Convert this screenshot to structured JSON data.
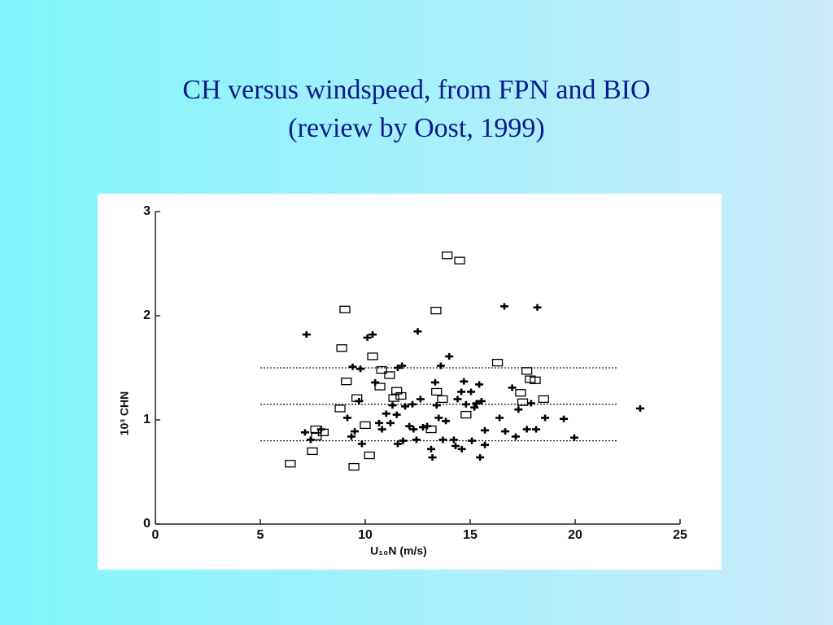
{
  "chart_data": {
    "type": "scatter",
    "title": "CH versus windspeed, from FPN and BIO",
    "subtitle": "(review by Oost, 1999)",
    "xlabel": "U₁₀N (m/s)",
    "ylabel": "10³ CHN",
    "xlim": [
      0,
      25
    ],
    "ylim": [
      0,
      3
    ],
    "xticks": [
      0,
      5,
      10,
      15,
      20,
      25
    ],
    "yticks": [
      0,
      1,
      2,
      3
    ],
    "reference_lines": [
      {
        "value": 0.8,
        "x": [
          5,
          22
        ]
      },
      {
        "value": 1.15,
        "x": [
          5,
          22
        ]
      },
      {
        "value": 1.5,
        "x": [
          5,
          22
        ]
      }
    ],
    "series": [
      {
        "marker": "square",
        "color": "#000000",
        "x": [
          6.43,
          7.48,
          7.64,
          7.67,
          8.0,
          8.8,
          8.88,
          9.03,
          9.1,
          9.46,
          9.6,
          10.0,
          10.2,
          10.35,
          10.7,
          10.78,
          11.16,
          11.36,
          11.5,
          11.7,
          13.14,
          13.37,
          13.4,
          13.68,
          13.9,
          14.5,
          14.8,
          16.3,
          17.4,
          17.7,
          17.86,
          18.1,
          17.5,
          18.5
        ],
        "values": [
          0.58,
          0.7,
          0.91,
          0.84,
          0.88,
          1.11,
          1.69,
          2.06,
          1.37,
          0.55,
          1.21,
          0.95,
          0.66,
          1.61,
          1.32,
          1.48,
          1.43,
          1.21,
          1.28,
          1.23,
          0.91,
          2.05,
          1.27,
          1.2,
          2.58,
          2.53,
          1.05,
          1.55,
          1.26,
          1.47,
          1.39,
          1.38,
          1.17,
          1.2
        ]
      },
      {
        "marker": "cross",
        "color": "#000000",
        "x": [
          7.2,
          7.13,
          7.4,
          7.9,
          9.15,
          9.4,
          9.77,
          9.7,
          9.5,
          9.34,
          9.84,
          10.1,
          10.35,
          10.47,
          10.66,
          10.8,
          11.0,
          11.2,
          11.3,
          11.5,
          11.55,
          11.75,
          11.55,
          11.8,
          11.9,
          12.1,
          12.25,
          12.3,
          12.44,
          12.5,
          12.63,
          12.75,
          12.95,
          13.14,
          13.2,
          13.33,
          13.4,
          13.5,
          13.6,
          13.7,
          13.84,
          14.0,
          14.22,
          14.3,
          14.4,
          14.58,
          14.6,
          14.7,
          14.8,
          15.04,
          15.08,
          15.2,
          15.3,
          15.43,
          15.47,
          15.54,
          15.7,
          15.7,
          16.4,
          16.63,
          16.67,
          17.0,
          17.17,
          17.3,
          17.7,
          17.9,
          18.2,
          18.14,
          18.57,
          19.46,
          19.96,
          23.1
        ],
        "values": [
          1.82,
          0.88,
          0.81,
          0.91,
          1.02,
          1.51,
          1.49,
          1.18,
          0.89,
          0.84,
          0.77,
          1.79,
          1.82,
          1.36,
          0.97,
          0.91,
          1.06,
          0.97,
          1.14,
          1.05,
          1.5,
          1.52,
          0.77,
          0.8,
          1.13,
          0.94,
          1.15,
          0.91,
          0.81,
          1.85,
          1.2,
          0.93,
          0.94,
          0.72,
          0.64,
          1.36,
          1.14,
          1.02,
          1.52,
          0.81,
          0.99,
          1.61,
          0.81,
          0.75,
          1.2,
          1.27,
          0.72,
          1.37,
          1.15,
          1.27,
          0.8,
          1.12,
          1.16,
          1.34,
          0.64,
          1.18,
          0.76,
          0.9,
          1.02,
          2.09,
          0.89,
          1.31,
          0.84,
          1.1,
          0.91,
          1.16,
          2.08,
          0.91,
          1.02,
          1.01,
          0.83,
          1.11
        ]
      }
    ]
  }
}
